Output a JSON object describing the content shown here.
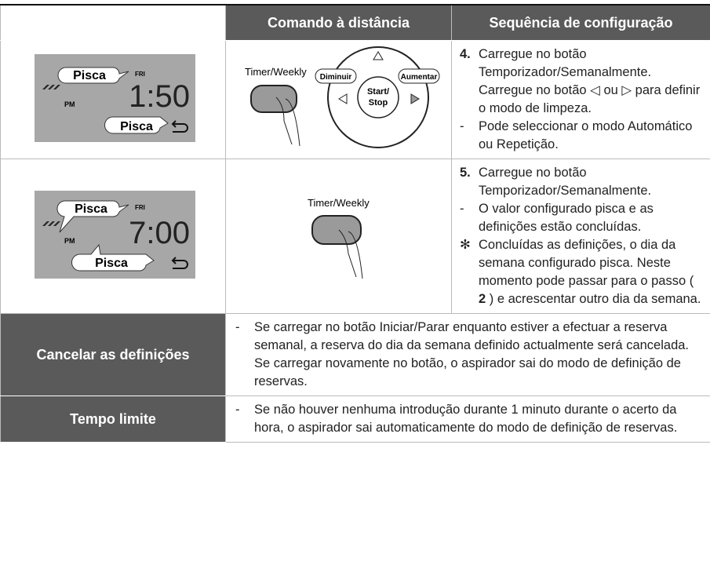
{
  "table": {
    "headers": {
      "remote": "Comando à distância",
      "sequence": "Sequência de configuração"
    },
    "steps": [
      {
        "display": {
          "blink_top": "Pisca",
          "day": "FRI",
          "period": "PM",
          "time": "1:50",
          "blink_bottom": "Pisca"
        },
        "remote": {
          "button": "Timer/Weekly",
          "left": "Diminuir",
          "right": "Aumentar",
          "center_1": "Start/",
          "center_2": "Stop"
        },
        "instructions": [
          {
            "marker": "4.",
            "text": "Carregue no botão Temporizador/Semanalmente. Carregue no botão ◁ ou ▷ para definir o modo de limpeza."
          },
          {
            "marker": "-",
            "text": "Pode seleccionar o modo Automático ou Repetição."
          }
        ]
      },
      {
        "display": {
          "blink_top": "Pisca",
          "day": "FRI",
          "period": "PM",
          "time": "7:00",
          "blink_bottom": "Pisca"
        },
        "remote": {
          "button": "Timer/Weekly"
        },
        "instructions": [
          {
            "marker": "5.",
            "text": "Carregue no botão Temporizador/Semanalmente."
          },
          {
            "marker": "-",
            "text": "O valor configurado pisca e as definições estão concluídas."
          },
          {
            "marker": "✻",
            "text": "Concluídas as definições, o dia da semana configurado pisca. Neste momento pode passar para o passo (",
            "ref": "2",
            "text_end": ") e acrescentar outro dia da semana."
          }
        ]
      }
    ],
    "notes": [
      {
        "label": "Cancelar as definições",
        "marker": "-",
        "text": "Se carregar no botão Iniciar/Parar enquanto estiver a efectuar a reserva semanal, a reserva do dia da semana definido actualmente será cancelada. Se carregar novamente no botão, o aspirador sai do modo de definição de reservas."
      },
      {
        "label": "Tempo limite",
        "marker": "-",
        "text": "Se não houver nenhuma introdução durante 1 minuto durante o acerto da hora, o aspirador sai automaticamente do modo de definição de reservas."
      }
    ]
  }
}
